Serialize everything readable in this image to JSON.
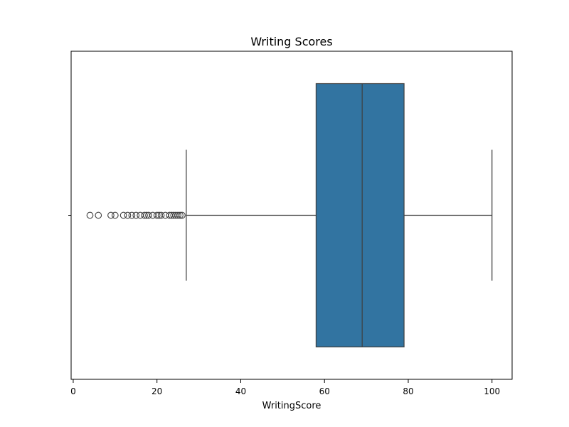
{
  "chart_data": {
    "type": "boxplot",
    "title": "Writing Scores",
    "xlabel": "WritingScore",
    "ylabel": "",
    "xlim": [
      -0.5,
      104.8
    ],
    "xticks": [
      0,
      20,
      40,
      60,
      80,
      100
    ],
    "xtick_labels": [
      "0",
      "20",
      "40",
      "60",
      "80",
      "100"
    ],
    "grid": false,
    "box": {
      "whisker_low": 27,
      "q1": 58,
      "median": 69,
      "q3": 79,
      "whisker_high": 100,
      "fill_color": "#3274a1",
      "line_color": "#3f3f3f"
    },
    "outliers": [
      4,
      6,
      9,
      10,
      12,
      13,
      14,
      15,
      16,
      17,
      17.5,
      18,
      19,
      20,
      20.5,
      21,
      22,
      23,
      23.5,
      24,
      24.5,
      25,
      25.5,
      26
    ]
  }
}
